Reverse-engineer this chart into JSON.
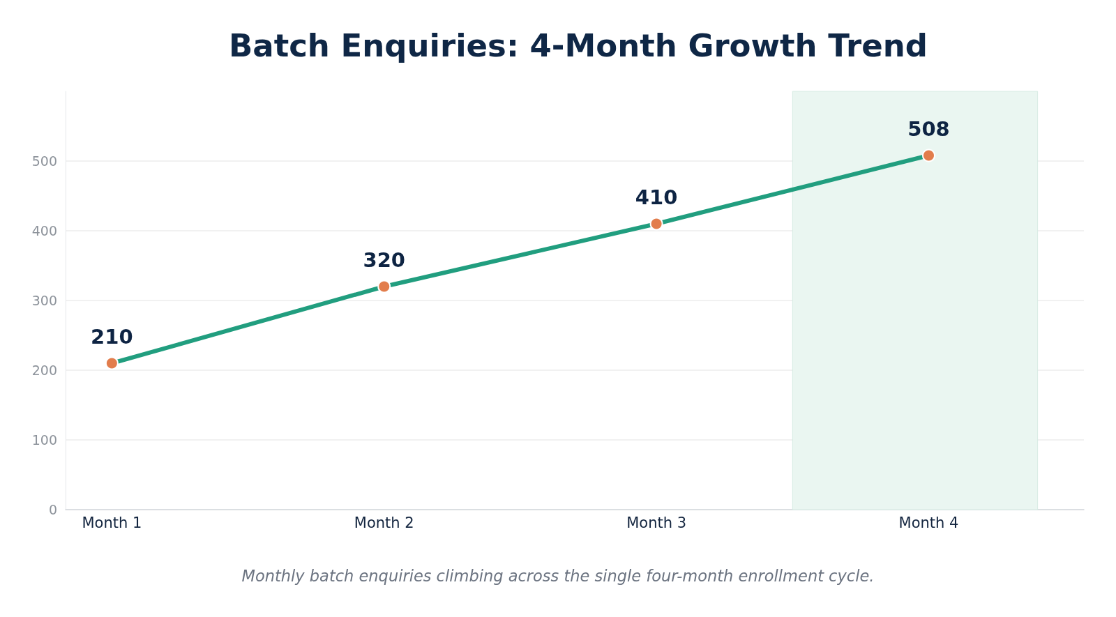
{
  "chart_data": {
    "type": "line",
    "title": "Batch Enquiries: 4-Month Growth Trend",
    "categories": [
      "Month 1",
      "Month 2",
      "Month 3",
      "Month 4"
    ],
    "series": [
      {
        "color": "#219e7f",
        "colors": [
          "#e27d4c",
          "#e27d4c",
          "#e27d4c",
          "#e27d4c"
        ],
        "values": [
          210,
          320,
          410,
          508
        ]
      }
    ],
    "ylim": [
      0,
      600
    ],
    "yticks": [
      0,
      100,
      200,
      300,
      400,
      500
    ],
    "grid": "y",
    "marker": "circle",
    "line_style": "solid",
    "data_labels": true,
    "bands": [
      {
        "axis": "x",
        "from": "Month 4",
        "to": "Month 4",
        "color": "#eaf6f1"
      }
    ],
    "annotations": [
      "Monthly batch enquiries climbing across the single four-month enrollment cycle."
    ]
  }
}
